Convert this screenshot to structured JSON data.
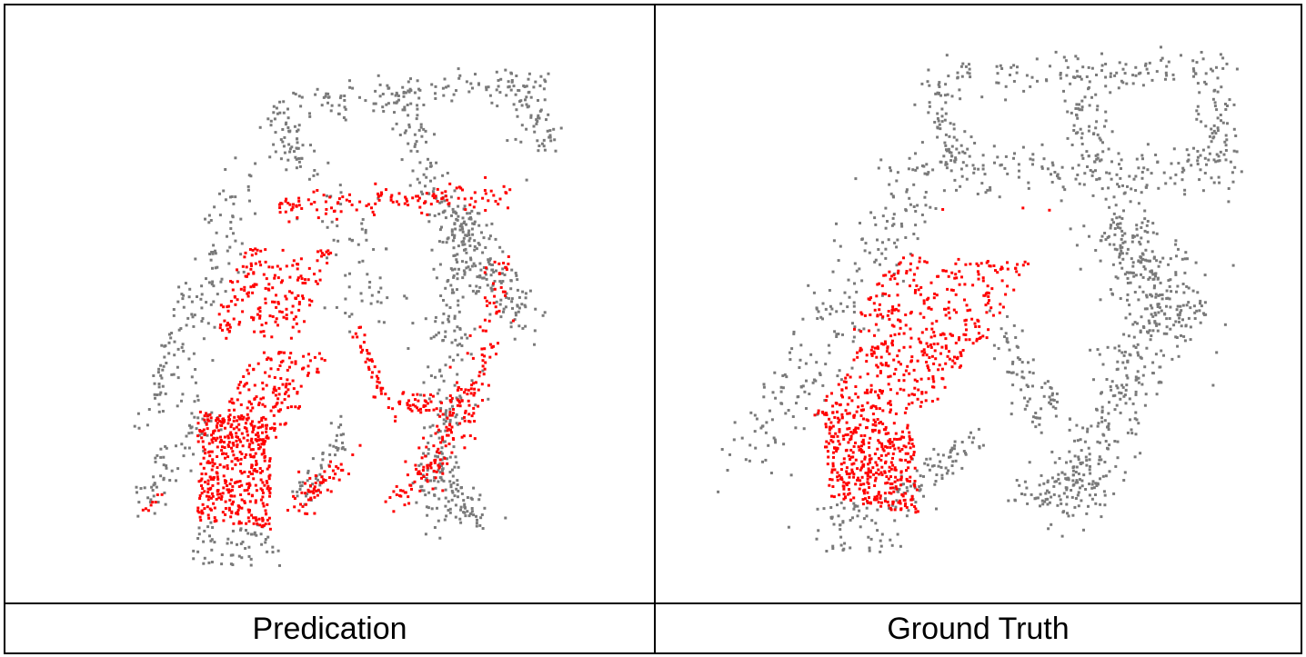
{
  "panels": [
    {
      "caption": "Predication",
      "colors": {
        "background_points": "#7a7a7a",
        "highlight_points": "#ff0000"
      }
    },
    {
      "caption": "Ground Truth",
      "colors": {
        "background_points": "#7a7a7a",
        "highlight_points": "#ff0000"
      }
    }
  ]
}
